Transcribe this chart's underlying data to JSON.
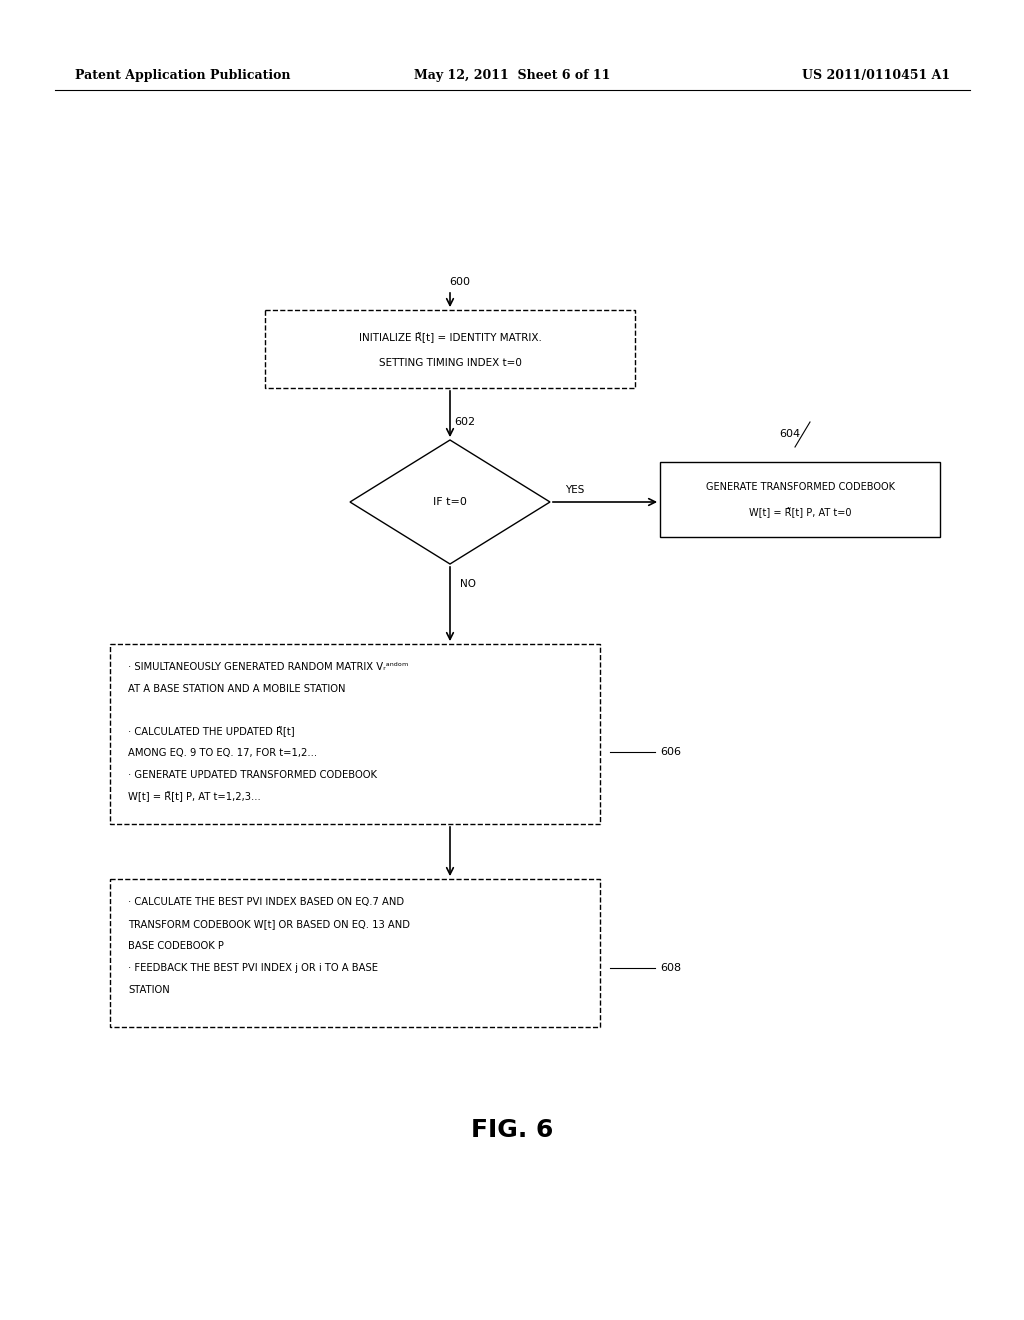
{
  "background_color": "#ffffff",
  "header_left": "Patent Application Publication",
  "header_center": "May 12, 2011  Sheet 6 of 11",
  "header_right": "US 2011/0110451 A1",
  "fig_label": "FIG. 6",
  "box600_text1": "INITIALIZE R̃[t] = IDENTITY MATRIX.",
  "box600_text2": "SETTING TIMING INDEX t=0",
  "diamond_text": "IF t=0",
  "box604_text1": "GENERATE TRANSFORMED CODEBOOK",
  "box604_text2": "W[t] = R̃[t] P, AT t=0",
  "box606_lines": [
    "· SIMULTANEOUSLY GENERATED RANDOM MATRIX Vᵣᵃⁿᵈᵒᵐ",
    "AT A BASE STATION AND A MOBILE STATION",
    "",
    "· CALCULATED THE UPDATED R̃[t]",
    "AMONG EQ. 9 TO EQ. 17, FOR t=1,2...",
    "· GENERATE UPDATED TRANSFORMED CODEBOOK",
    "W[t] = R̃[t] P, AT t=1,2,3..."
  ],
  "box608_lines": [
    "· CALCULATE THE BEST PVI INDEX BASED ON EQ.7 AND",
    "TRANSFORM CODEBOOK W[t] OR BASED ON EQ. 13 AND",
    "BASE CODEBOOK P",
    "· FEEDBACK THE BEST PVI INDEX j OR i TO A BASE",
    "STATION"
  ],
  "label_600": "600",
  "label_602": "602",
  "label_604": "604",
  "label_606": "606",
  "label_608": "608",
  "yes_label": "YES",
  "no_label": "NO"
}
